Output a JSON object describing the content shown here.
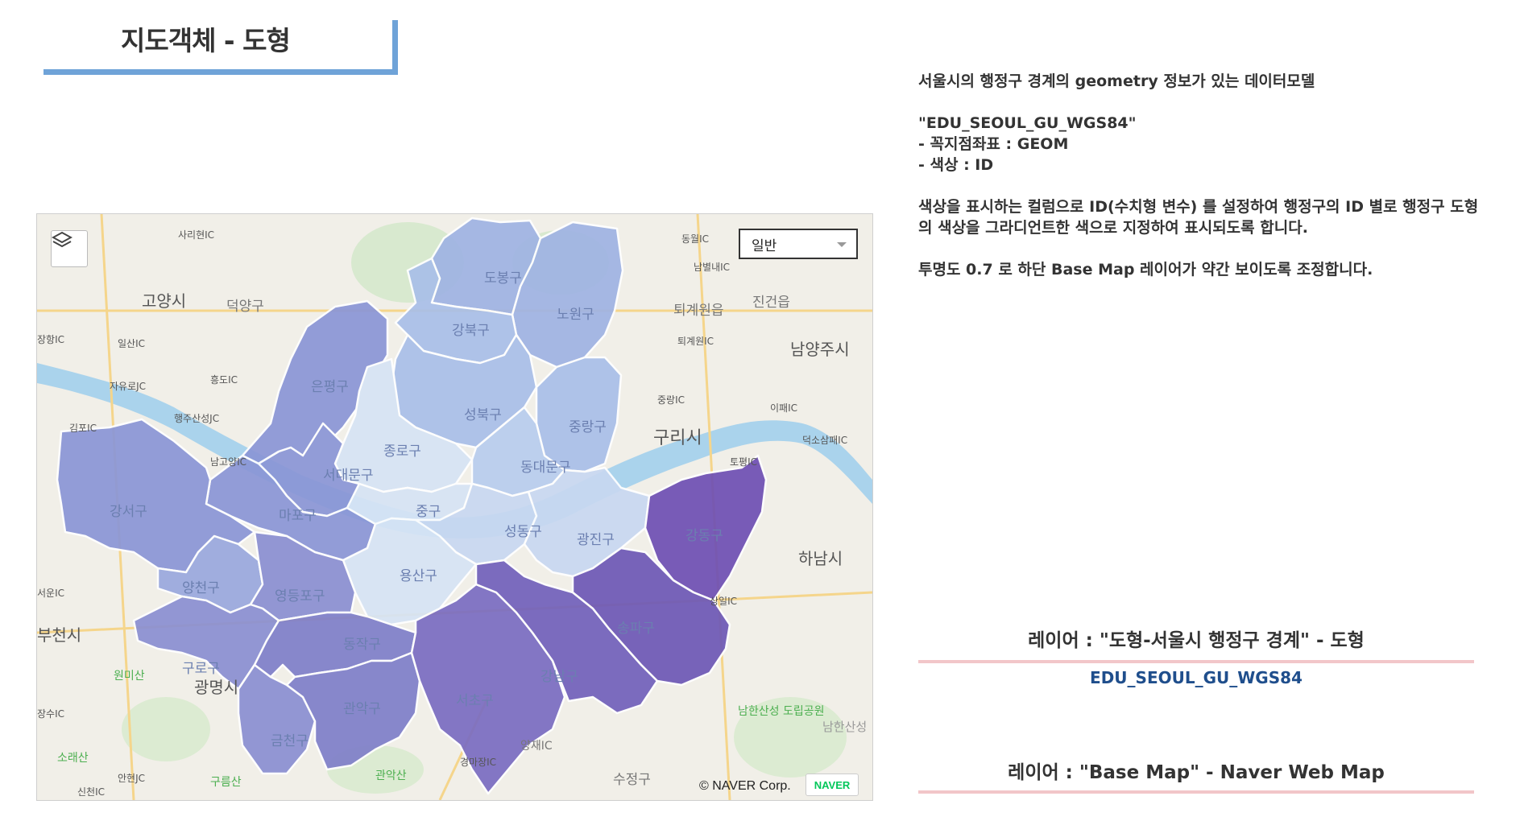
{
  "page_title": "지도객체 - 도형",
  "description": {
    "line1": "서울시의 행정구 경계의 geometry 정보가 있는 데이터모델",
    "model_name": "\"EDU_SEOUL_GU_WGS84\"",
    "field_geom": "- 꼭지점좌표 : GEOM",
    "field_color": "- 색상 : ID",
    "para2_line1": "색상을 표시하는 컬럼으로 ID(수치형 변수) 를 설정하여  행정구의 ID 별로 행정구 도형",
    "para2_line2": "의 색상을 그라디언트한 색으로 지정하여 표시되도록 합니다.",
    "para3": "투명도 0.7  로 하단 Base Map 레이어가 약간 보이도록 조정합니다."
  },
  "legend": {
    "layer1_label": "레이어  : \"도형-서울시 행정구 경계\"    -  도형",
    "layer1_model": "EDU_SEOUL_GU_WGS84",
    "layer2_label": "레이어  : \"Base Map\"    -  Naver Web Map"
  },
  "map": {
    "map_type_selected": "일반",
    "copyright": "© NAVER Corp.",
    "logo": "NAVER",
    "gradient_colors": [
      "#d6e4f5",
      "#b8cdee",
      "#9fb3e3",
      "#8a96d6",
      "#7d72c4",
      "#6e4fb3"
    ],
    "district_labels": [
      "도봉구",
      "노원구",
      "강북구",
      "은평구",
      "성북구",
      "중랑구",
      "서대문구",
      "동대문구",
      "종로구",
      "마포구",
      "중구",
      "성동구",
      "광진구",
      "강동구",
      "강서구",
      "양천구",
      "영등포구",
      "용산구",
      "구로구",
      "동작구",
      "서초구",
      "강남구",
      "송파구",
      "금천구",
      "관악구"
    ],
    "place_labels": [
      "고양시",
      "덕양구",
      "구리시",
      "남양주시",
      "하남시",
      "광명시",
      "부천시",
      "진건읍",
      "퇴계원읍",
      "소래산",
      "구름산",
      "관악산",
      "수정구",
      "남한산성 도립공원",
      "남한산성",
      "사리현IC",
      "동월IC",
      "남별내IC",
      "퇴계원IC",
      "일산IC",
      "흥도IC",
      "자유로JC",
      "김포IC",
      "행주산성JC",
      "남고양IC",
      "이패IC",
      "덕소삼패IC",
      "토평IC",
      "서운IC",
      "장수IC",
      "안현JC",
      "신천IC",
      "경마장IC",
      "양재IC",
      "원미산",
      "장항IC",
      "상일IC",
      "중랑IC"
    ]
  }
}
